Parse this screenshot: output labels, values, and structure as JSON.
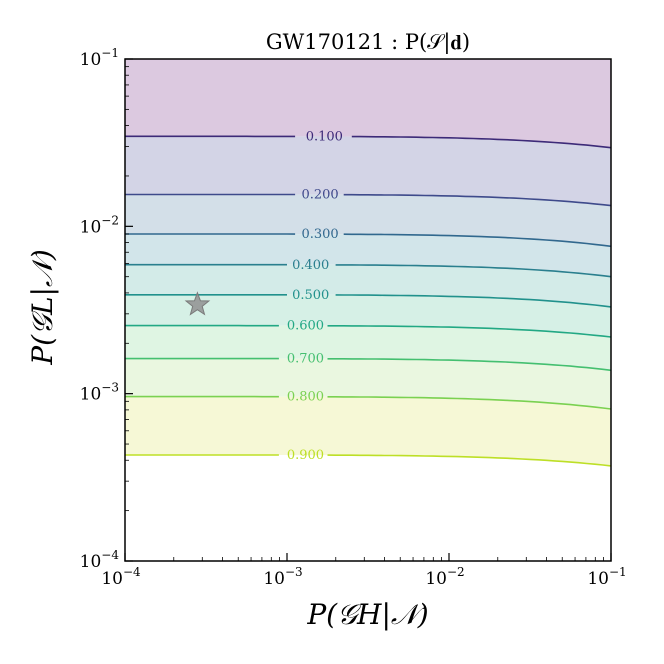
{
  "chart_data": {
    "type": "contour",
    "title": "GW170121 : P(𝒮|𝐝)",
    "xlabel": "P(𝒢H|𝒩)",
    "ylabel": "P(𝒢L|𝒩)",
    "xscale": "log",
    "yscale": "log",
    "xlim": [
      0.0001,
      0.1
    ],
    "ylim": [
      0.0001,
      0.1
    ],
    "x_ticks": [
      {
        "value": 0.0001,
        "base": "10",
        "exp": "−4"
      },
      {
        "value": 0.001,
        "base": "10",
        "exp": "−3"
      },
      {
        "value": 0.01,
        "base": "10",
        "exp": "−2"
      },
      {
        "value": 0.1,
        "base": "10",
        "exp": "−1"
      }
    ],
    "y_ticks": [
      {
        "value": 0.0001,
        "base": "10",
        "exp": "−4"
      },
      {
        "value": 0.001,
        "base": "10",
        "exp": "−3"
      },
      {
        "value": 0.01,
        "base": "10",
        "exp": "−2"
      },
      {
        "value": 0.1,
        "base": "10",
        "exp": "−1"
      }
    ],
    "levels": [
      {
        "label": "0.100",
        "value": 0.1,
        "color": "#3d2a78",
        "y_left": 0.0345,
        "y_right": 0.0295,
        "label_x": 0.0017
      },
      {
        "label": "0.200",
        "value": 0.2,
        "color": "#3e4a8b",
        "y_left": 0.0155,
        "y_right": 0.0133,
        "label_x": 0.0016
      },
      {
        "label": "0.300",
        "value": 0.3,
        "color": "#31688e",
        "y_left": 0.009,
        "y_right": 0.0076,
        "label_x": 0.0016
      },
      {
        "label": "0.400",
        "value": 0.4,
        "color": "#2a7f8e",
        "y_left": 0.0059,
        "y_right": 0.005,
        "label_x": 0.0014
      },
      {
        "label": "0.500",
        "value": 0.5,
        "color": "#21918c",
        "y_left": 0.0039,
        "y_right": 0.0033,
        "label_x": 0.0014
      },
      {
        "label": "0.600",
        "value": 0.6,
        "color": "#22a884",
        "y_left": 0.00255,
        "y_right": 0.00218,
        "label_x": 0.0013
      },
      {
        "label": "0.700",
        "value": 0.7,
        "color": "#44bf70",
        "y_left": 0.00162,
        "y_right": 0.00138,
        "label_x": 0.0013
      },
      {
        "label": "0.800",
        "value": 0.8,
        "color": "#7ad151",
        "y_left": 0.00096,
        "y_right": 0.00081,
        "label_x": 0.0013
      },
      {
        "label": "0.900",
        "value": 0.9,
        "color": "#bddf26",
        "y_left": 0.00043,
        "y_right": 0.00037,
        "label_x": 0.0013
      }
    ],
    "fill_colors": [
      "#dcc9e0",
      "#d3d4e6",
      "#d3dfe8",
      "#d2e5ea",
      "#d3ebe8",
      "#d6f0e6",
      "#dff5e3",
      "#eaf7e0",
      "#f6f8d6"
    ],
    "marker": {
      "shape": "star",
      "x": 0.00028,
      "y": 0.0034,
      "color": "#909090"
    }
  }
}
